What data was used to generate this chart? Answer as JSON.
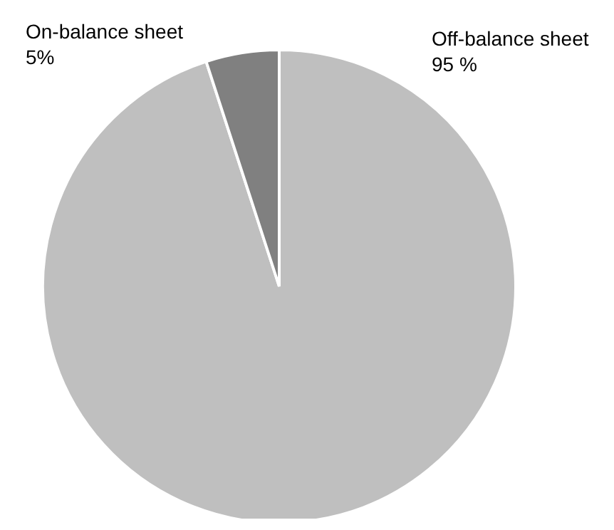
{
  "chart_data": {
    "type": "pie",
    "categories": [
      "Off-balance sheet",
      "On-balance sheet"
    ],
    "values": [
      95,
      5
    ],
    "colors": [
      "#bfbfbf",
      "#808080"
    ],
    "value_labels": [
      "95 %",
      "5%"
    ]
  }
}
